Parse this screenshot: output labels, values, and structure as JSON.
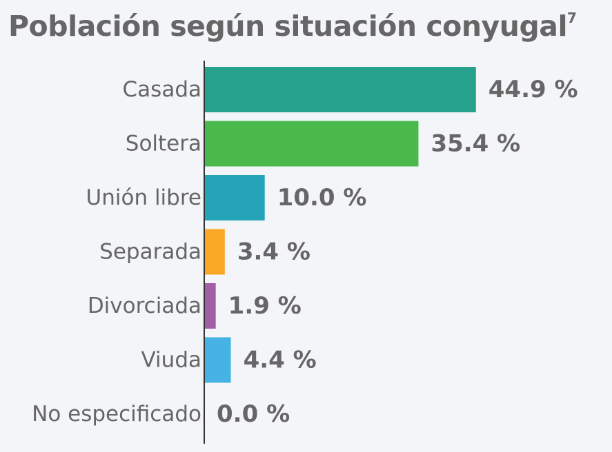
{
  "chart_data": {
    "type": "bar",
    "orientation": "horizontal",
    "title": "Población según situación conyugal",
    "title_note": "7",
    "categories": [
      "Casada",
      "Soltera",
      "Unión libre",
      "Separada",
      "Divorciada",
      "Viuda",
      "No especificado"
    ],
    "values": [
      44.9,
      35.4,
      10.0,
      3.4,
      1.9,
      4.4,
      0.0
    ],
    "value_labels": [
      "44.9 %",
      "35.4 %",
      "10.0 %",
      "3.4 %",
      "1.9 %",
      "4.4 %",
      "0.0 %"
    ],
    "colors": [
      "#25a18c",
      "#4ab94b",
      "#25a4b8",
      "#f9a825",
      "#a45ea7",
      "#47b3e5",
      "#9e9e9e"
    ],
    "xlim": [
      0,
      50
    ],
    "grid": false,
    "legend": "none"
  }
}
